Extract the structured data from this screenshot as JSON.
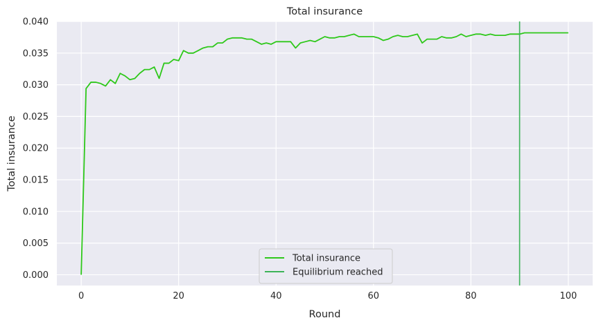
{
  "chart_data": {
    "type": "line",
    "title": "Total insurance",
    "xlabel": "Round",
    "ylabel": "Total insurance",
    "xlim": [
      -5,
      105
    ],
    "ylim": [
      -0.0017,
      0.04
    ],
    "xticks": [
      0,
      20,
      40,
      60,
      80,
      100
    ],
    "xtick_labels": [
      "0",
      "20",
      "40",
      "60",
      "80",
      "100"
    ],
    "yticks": [
      0.0,
      0.005,
      0.01,
      0.015,
      0.02,
      0.025,
      0.03,
      0.035,
      0.04
    ],
    "ytick_labels": [
      "0.000",
      "0.005",
      "0.010",
      "0.015",
      "0.020",
      "0.025",
      "0.030",
      "0.035",
      "0.040"
    ],
    "grid": true,
    "legend_placement": "bottom-center",
    "background_color": "#eaeaf2",
    "series": [
      {
        "name": "Total insurance",
        "color": "#2ec81a",
        "x": [
          0,
          1,
          2,
          3,
          4,
          5,
          6,
          7,
          8,
          9,
          10,
          11,
          12,
          13,
          14,
          15,
          16,
          17,
          18,
          19,
          20,
          21,
          22,
          23,
          24,
          25,
          26,
          27,
          28,
          29,
          30,
          31,
          32,
          33,
          34,
          35,
          36,
          37,
          38,
          39,
          40,
          41,
          42,
          43,
          44,
          45,
          46,
          47,
          48,
          49,
          50,
          51,
          52,
          53,
          54,
          55,
          56,
          57,
          58,
          59,
          60,
          61,
          62,
          63,
          64,
          65,
          66,
          67,
          68,
          69,
          70,
          71,
          72,
          73,
          74,
          75,
          76,
          77,
          78,
          79,
          80,
          81,
          82,
          83,
          84,
          85,
          86,
          87,
          88,
          89,
          90,
          91,
          92,
          93,
          94,
          95,
          96,
          97,
          98,
          99,
          100
        ],
        "y": [
          0.0,
          0.0294,
          0.0304,
          0.0304,
          0.0302,
          0.0298,
          0.0308,
          0.0302,
          0.0318,
          0.0314,
          0.0308,
          0.031,
          0.0318,
          0.0324,
          0.0324,
          0.0328,
          0.031,
          0.0334,
          0.0334,
          0.034,
          0.0338,
          0.0354,
          0.035,
          0.035,
          0.0354,
          0.0358,
          0.036,
          0.036,
          0.0366,
          0.0366,
          0.0372,
          0.0374,
          0.0374,
          0.0374,
          0.0372,
          0.0372,
          0.0368,
          0.0364,
          0.0366,
          0.0364,
          0.0368,
          0.0368,
          0.0368,
          0.0368,
          0.0358,
          0.0366,
          0.0368,
          0.037,
          0.0368,
          0.0372,
          0.0376,
          0.0374,
          0.0374,
          0.0376,
          0.0376,
          0.0378,
          0.038,
          0.0376,
          0.0376,
          0.0376,
          0.0376,
          0.0374,
          0.037,
          0.0372,
          0.0376,
          0.0378,
          0.0376,
          0.0376,
          0.0378,
          0.038,
          0.0366,
          0.0372,
          0.0372,
          0.0372,
          0.0376,
          0.0374,
          0.0374,
          0.0376,
          0.038,
          0.0376,
          0.0378,
          0.038,
          0.038,
          0.0378,
          0.038,
          0.0378,
          0.0378,
          0.0378,
          0.038,
          0.038,
          0.038,
          0.0382,
          0.0382,
          0.0382,
          0.0382,
          0.0382,
          0.0382,
          0.0382,
          0.0382,
          0.0382,
          0.0382
        ]
      },
      {
        "name": "Equilibrium reached",
        "color": "#3cb357",
        "type": "vline",
        "x": 90
      }
    ]
  }
}
